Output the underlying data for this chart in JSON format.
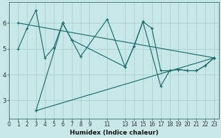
{
  "xlabel": "Humidex (Indice chaleur)",
  "bg_color": "#c8e8e8",
  "grid_color": "#aed4d4",
  "line_color": "#1a6b6b",
  "series": [
    {
      "x": [
        1,
        2,
        3,
        4,
        5,
        5,
        6,
        6,
        7,
        8,
        11,
        13,
        14,
        15,
        16,
        17,
        18,
        19,
        20,
        21,
        22,
        23
      ],
      "y": [
        5.0,
        5.8,
        6.5,
        4.65,
        5.05,
        5.05,
        6.0,
        6.0,
        5.35,
        4.7,
        6.15,
        4.3,
        5.1,
        6.05,
        5.8,
        4.15,
        4.15,
        4.2,
        4.15,
        4.15,
        4.35,
        4.65
      ]
    },
    {
      "x": [
        3,
        6,
        7,
        13,
        14,
        15,
        17,
        18,
        19,
        20,
        21,
        22,
        23
      ],
      "y": [
        2.6,
        6.0,
        5.35,
        4.3,
        5.1,
        6.05,
        3.55,
        4.15,
        4.2,
        4.15,
        4.15,
        4.35,
        4.65
      ]
    },
    {
      "x": [
        1,
        23
      ],
      "y": [
        6.0,
        4.65
      ]
    },
    {
      "x": [
        3,
        23
      ],
      "y": [
        2.6,
        4.65
      ]
    }
  ],
  "xlim": [
    0,
    23.5
  ],
  "ylim": [
    2.3,
    6.8
  ],
  "yticks": [
    3,
    4,
    5,
    6
  ],
  "xticks": [
    0,
    1,
    2,
    3,
    4,
    5,
    6,
    7,
    8,
    9,
    11,
    13,
    14,
    15,
    16,
    17,
    18,
    19,
    20,
    21,
    22,
    23
  ],
  "xlabels": [
    "0",
    "1",
    "2",
    "3",
    "4",
    "5",
    "6",
    "7",
    "8",
    "9",
    "11",
    "13",
    "14",
    "15",
    "16",
    "17",
    "18",
    "19",
    "20",
    "21",
    "22",
    "23"
  ]
}
